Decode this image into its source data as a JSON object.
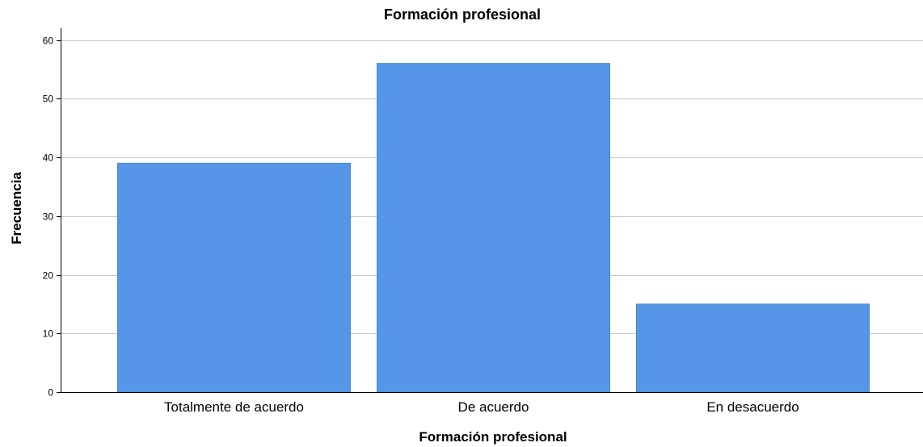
{
  "chart_data": {
    "type": "bar",
    "title": "Formación profesional",
    "xlabel": "Formación profesional",
    "ylabel": "Frecuencia",
    "categories": [
      "Totalmente de acuerdo",
      "De acuerdo",
      "En desacuerdo"
    ],
    "values": [
      39,
      56,
      15
    ],
    "ylim": [
      0,
      62
    ],
    "yticks": [
      "0",
      "10",
      "20",
      "30",
      "40",
      "50",
      "60"
    ],
    "grid": true,
    "legend": "none",
    "bar_color": "#5596e6",
    "bar_edge_color": "#4a86d0"
  }
}
